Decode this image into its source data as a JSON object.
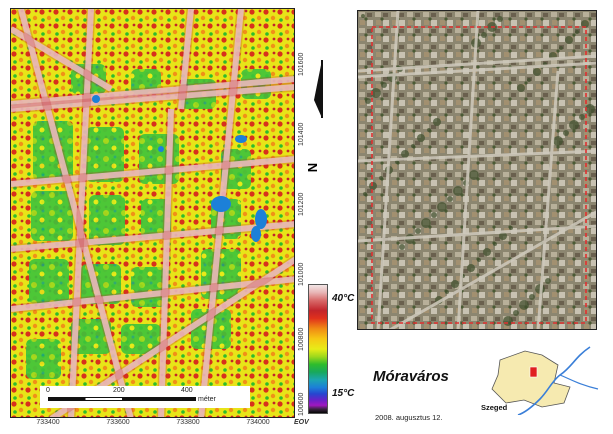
{
  "thermal_map": {
    "x_ticks": [
      "733400",
      "733600",
      "733800",
      "734000"
    ],
    "y_ticks": [
      "101600",
      "101400",
      "101200",
      "101000",
      "100800",
      "100600"
    ],
    "crs_label": "EOV",
    "scale_bar": {
      "labels": [
        "0",
        "200",
        "400"
      ],
      "unit": "méter"
    }
  },
  "legend": {
    "max_label": "40°C",
    "min_label": "15°C",
    "max_color": "#c2242a",
    "min_color": "#050505"
  },
  "north_arrow": {
    "label": "N"
  },
  "place": {
    "title": "Móraváros",
    "date": "2008. augusztus 12."
  },
  "inset": {
    "city_label": "Szeged",
    "city_color": "#f6eab0",
    "highlight_color": "#e02020",
    "river_color": "#3a7fd8"
  },
  "colors": {
    "roads": "#f4e8e8",
    "vegetation": "#2ebc2c",
    "hot": "#d02020",
    "study_area_outline": "#e03030"
  }
}
